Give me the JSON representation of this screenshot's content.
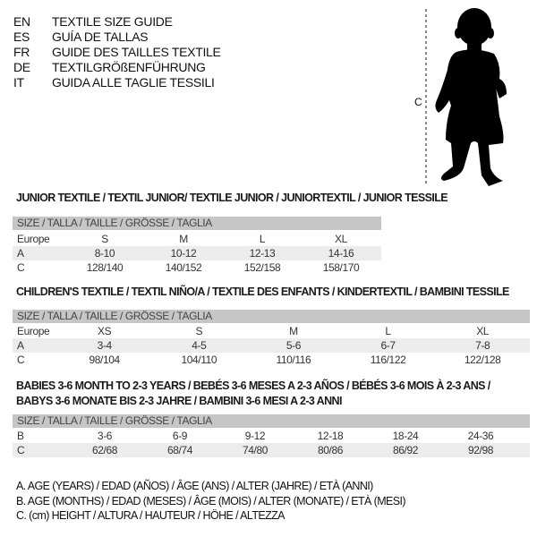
{
  "header": {
    "lines": [
      {
        "code": "EN",
        "title": "TEXTILE SIZE GUIDE"
      },
      {
        "code": "ES",
        "title": "GUÍA DE TALLAS"
      },
      {
        "code": "FR",
        "title": "GUIDE DES TAILLES TEXTILE"
      },
      {
        "code": "DE",
        "title": "TEXTILGRÖßENFÜHRUNG"
      },
      {
        "code": "IT",
        "title": "GUIDA ALLE TAGLIE TESSILI"
      }
    ]
  },
  "figure": {
    "height_label": "C",
    "icon": "child-silhouette"
  },
  "junior": {
    "heading": "JUNIOR TEXTILE / TEXTIL JUNIOR/ TEXTILE JUNIOR / JUNIORTEXTIL / JUNIOR TESSILE",
    "band": "SIZE / TALLA / TAILLE / GRÖSSE / TAGLIA",
    "rows": [
      {
        "label": "Europe",
        "cells": [
          "S",
          "M",
          "L",
          "XL"
        ]
      },
      {
        "label": "A",
        "cells": [
          "8-10",
          "10-12",
          "12-13",
          "14-16"
        ]
      },
      {
        "label": "C",
        "cells": [
          "128/140",
          "140/152",
          "152/158",
          "158/170"
        ]
      }
    ]
  },
  "children": {
    "heading": "CHILDREN'S TEXTILE / TEXTIL NIÑO/A / TEXTILE DES ENFANTS / KINDERTEXTIL / BAMBINI TESSILE",
    "band": "SIZE / TALLA / TAILLE / GRÖSSE / TAGLIA",
    "rows": [
      {
        "label": "Europe",
        "cells": [
          "XS",
          "S",
          "M",
          "L",
          "XL"
        ]
      },
      {
        "label": "A",
        "cells": [
          "3-4",
          "4-5",
          "5-6",
          "6-7",
          "7-8"
        ]
      },
      {
        "label": "C",
        "cells": [
          "98/104",
          "104/110",
          "110/116",
          "116/122",
          "122/128"
        ]
      }
    ]
  },
  "babies": {
    "heading_line1": "BABIES 3-6 MONTH TO 2-3 YEARS / BEBÉS 3-6 MESES A 2-3 AÑOS / BÉBÉS 3-6 MOIS À 2-3 ANS /",
    "heading_line2": "BABYS 3-6 MONATE BIS 2-3 JAHRE / BAMBINI 3-6 MESI A 2-3 ANNI",
    "band": "SIZE / TALLA / TAILLE / GRÖSSE / TAGLIA",
    "rows": [
      {
        "label": "B",
        "cells": [
          "3-6",
          "6-9",
          "9-12",
          "12-18",
          "18-24",
          "24-36"
        ]
      },
      {
        "label": "C",
        "cells": [
          "62/68",
          "68/74",
          "74/80",
          "80/86",
          "86/92",
          "92/98"
        ]
      }
    ]
  },
  "legend": [
    "A. AGE (YEARS) / EDAD (AÑOS) / ÂGE (ANS) / ALTER (JAHRE) / ETÀ (ANNI)",
    "B. AGE (MONTHS) / EDAD (MESES) / ÂGE (MOIS) / ALTER (MONATE) / ETÀ (MESI)",
    "C. (cm) HEIGHT / ALTURA / HAUTEUR / HÖHE / ALTEZZA"
  ]
}
